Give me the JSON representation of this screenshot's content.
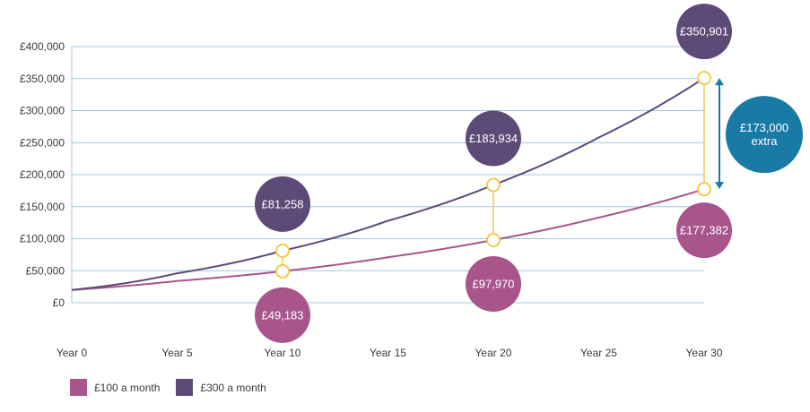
{
  "chart_data": {
    "type": "line",
    "x": [
      0,
      5,
      10,
      15,
      20,
      25,
      30
    ],
    "x_tick_labels": [
      "Year 0",
      "Year 5",
      "Year 10",
      "Year 15",
      "Year 20",
      "Year 25",
      "Year 30"
    ],
    "y_tick_labels": [
      "£0",
      "£50,000",
      "£100,000",
      "£150,000",
      "£200,000",
      "£250,000",
      "£300,000",
      "£350,000",
      "£400,000"
    ],
    "ylim": [
      0,
      400000
    ],
    "grid": true,
    "legend_position": "bottom-left",
    "series": [
      {
        "name": "£100 a month",
        "color": "#a8558c",
        "values": [
          20000,
          34000,
          49183,
          71000,
          97970,
          133000,
          177382
        ],
        "callouts": [
          {
            "x": 10,
            "value": 49183,
            "label": "£49,183"
          },
          {
            "x": 20,
            "value": 97970,
            "label": "£97,970"
          },
          {
            "x": 30,
            "value": 177382,
            "label": "£177,382"
          }
        ]
      },
      {
        "name": "£300 a month",
        "color": "#5e4a77",
        "values": [
          20000,
          46000,
          81258,
          128000,
          183934,
          258000,
          350901
        ],
        "callouts": [
          {
            "x": 10,
            "value": 81258,
            "label": "£81,258"
          },
          {
            "x": 20,
            "value": 183934,
            "label": "£183,934"
          },
          {
            "x": 30,
            "value": 350901,
            "label": "£350,901"
          }
        ]
      }
    ],
    "annotation": {
      "line1": "£173,000",
      "line2": "extra",
      "color": "#1a7aa6"
    },
    "connector_color": "#f2c94c",
    "grid_color": "#9cc9e0"
  }
}
